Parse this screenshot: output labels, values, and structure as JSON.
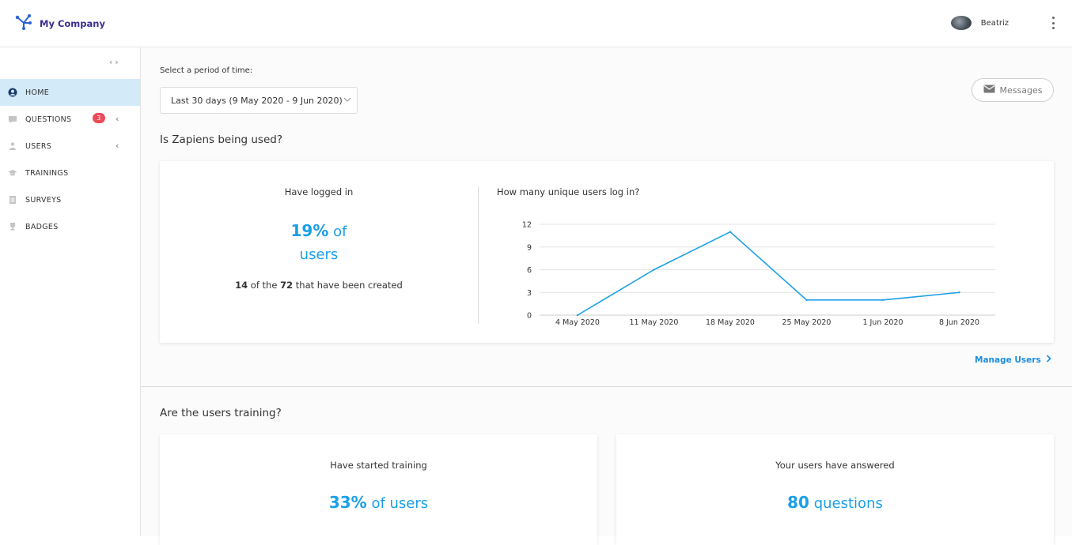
{
  "header": {
    "brand": "My Company",
    "user_name": "Beatriz"
  },
  "sidebar": {
    "items": [
      {
        "label": "HOME",
        "icon": "user-circle-icon",
        "active": true
      },
      {
        "label": "QUESTIONS",
        "icon": "chat-icon",
        "badge": "3",
        "expandable": true
      },
      {
        "label": "USERS",
        "icon": "user-icon",
        "expandable": true
      },
      {
        "label": "TRAININGS",
        "icon": "graduation-cap-icon"
      },
      {
        "label": "SURVEYS",
        "icon": "clipboard-icon"
      },
      {
        "label": "BADGES",
        "icon": "trophy-icon"
      }
    ]
  },
  "filters": {
    "period_label": "Select a period of time:",
    "period_value": "Last 30 days (9 May 2020 - 9 Jun 2020)"
  },
  "messages_button": "Messages",
  "usage_section": {
    "title": "Is Zapiens being used?",
    "logged_in": {
      "title": "Have logged in",
      "percent": "19%",
      "percent_suffix_1": " of",
      "percent_suffix_2": "users",
      "count": "14",
      "count_mid": " of the ",
      "total": "72",
      "count_suffix": " that have been created"
    },
    "chart_title": "How many unique users log in?",
    "manage_users": "Manage Users"
  },
  "training_section": {
    "title": "Are the users training?",
    "started": {
      "title": "Have started training",
      "value": "33%",
      "suffix": " of users"
    },
    "answered": {
      "title": "Your users have answered",
      "value": "80",
      "suffix": " questions"
    }
  },
  "colors": {
    "accent": "#1a9fe8",
    "brand": "#3a2f8f",
    "badge": "#ee4a57",
    "active_nav": "#d3eaf9"
  },
  "chart_data": {
    "type": "line",
    "title": "How many unique users log in?",
    "categories": [
      "4 May 2020",
      "11 May 2020",
      "18 May 2020",
      "25 May 2020",
      "1 Jun 2020",
      "8 Jun 2020"
    ],
    "series": [
      {
        "values": [
          0,
          6,
          11,
          2,
          2,
          3
        ]
      }
    ],
    "yticks": [
      0,
      3,
      6,
      9,
      12
    ],
    "ylim": [
      0,
      12
    ],
    "grid": true,
    "line_color": "#1a9fe8"
  }
}
